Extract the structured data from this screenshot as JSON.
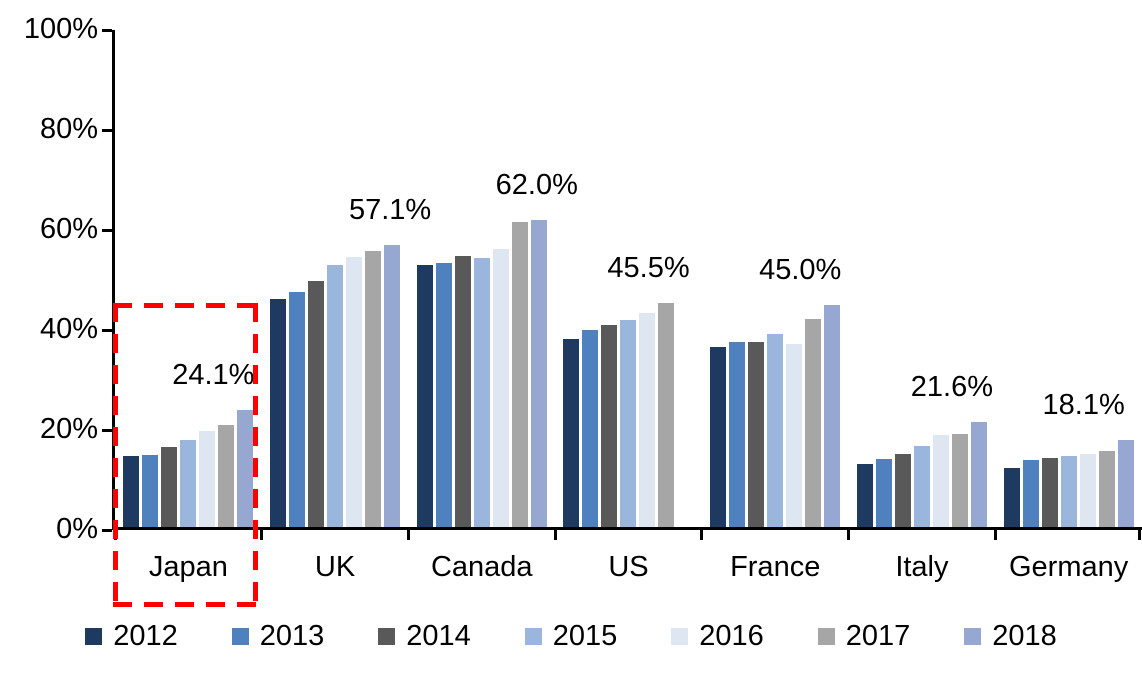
{
  "chart_data": {
    "type": "bar",
    "title": "",
    "xlabel": "",
    "ylabel": "",
    "categories": [
      "Japan",
      "UK",
      "Canada",
      "US",
      "France",
      "Italy",
      "Germany"
    ],
    "series": [
      {
        "name": "2012",
        "color": "#1F3A60",
        "values": [
          14.8,
          46.3,
          53.0,
          38.3,
          36.6,
          13.3,
          12.4
        ]
      },
      {
        "name": "2013",
        "color": "#4E81BD",
        "values": [
          15.0,
          47.7,
          53.4,
          40.1,
          37.7,
          14.2,
          14.0
        ]
      },
      {
        "name": "2014",
        "color": "#595959",
        "values": [
          16.6,
          49.8,
          54.8,
          41.0,
          37.6,
          15.2,
          14.4
        ]
      },
      {
        "name": "2015",
        "color": "#9BB6DC",
        "values": [
          18.0,
          53.0,
          54.5,
          42.1,
          39.3,
          16.8,
          14.8
        ]
      },
      {
        "name": "2016",
        "color": "#DEE6F2",
        "values": [
          19.8,
          54.6,
          56.2,
          43.5,
          37.3,
          19.0,
          15.3
        ]
      },
      {
        "name": "2017",
        "color": "#A6A6A6",
        "values": [
          21.0,
          55.8,
          61.6,
          45.5,
          42.3,
          19.2,
          15.9
        ]
      },
      {
        "name": "2018",
        "color": "#96A7D2",
        "values": [
          24.1,
          57.1,
          62.0,
          null,
          45.0,
          21.6,
          18.1
        ]
      }
    ],
    "data_labels": [
      {
        "category": "Japan",
        "text": "24.1%"
      },
      {
        "category": "UK",
        "text": "57.1%"
      },
      {
        "category": "Canada",
        "text": "62.0%"
      },
      {
        "category": "US",
        "text": "45.5%"
      },
      {
        "category": "France",
        "text": "45.0%"
      },
      {
        "category": "Italy",
        "text": "21.6%"
      },
      {
        "category": "Germany",
        "text": "18.1%"
      }
    ],
    "y_axis": {
      "ticks": [
        "0%",
        "20%",
        "40%",
        "60%",
        "80%",
        "100%"
      ],
      "tick_values": [
        0,
        20,
        40,
        60,
        80,
        100
      ],
      "ylim": [
        0,
        100
      ],
      "grid": false
    },
    "legend": {
      "position": "bottom",
      "entries": [
        "2012",
        "2013",
        "2014",
        "2015",
        "2016",
        "2017",
        "2018"
      ]
    },
    "annotation_box": {
      "target": "Japan",
      "style": "dashed-rectangle",
      "color": "#FF0000"
    }
  }
}
